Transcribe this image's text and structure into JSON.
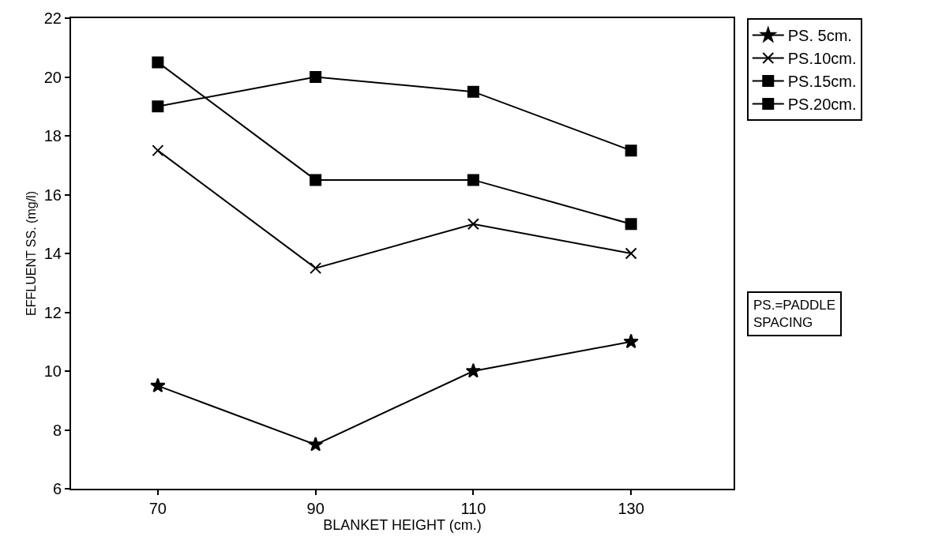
{
  "chart_data": {
    "type": "line",
    "xlabel": "BLANKET HEIGHT (cm.)",
    "ylabel": "EFFLUENT SS. (mg/l)",
    "x": [
      70,
      90,
      110,
      130
    ],
    "series": [
      {
        "name": "PS. 5cm.",
        "color": "#000000",
        "marker": "star",
        "values": [
          9.5,
          7.5,
          10,
          11
        ]
      },
      {
        "name": "PS.10cm.",
        "color": "#000000",
        "marker": "cross",
        "values": [
          17.5,
          13.5,
          15,
          14
        ]
      },
      {
        "name": "PS.15cm.",
        "color": "#000000",
        "marker": "square",
        "values": [
          20.5,
          16.5,
          16.5,
          15
        ]
      },
      {
        "name": "PS.20cm.",
        "color": "#000000",
        "marker": "square",
        "values": [
          19,
          20,
          19.5,
          17.5
        ]
      }
    ],
    "xlim": [
      59,
      143
    ],
    "xticks": [
      70,
      90,
      110,
      130
    ],
    "ylim": [
      6,
      22
    ],
    "yticks": [
      6,
      8,
      10,
      12,
      14,
      16,
      18,
      20,
      22
    ],
    "legend": "right",
    "line_style": "solid",
    "annotations": [
      "PS.=PADDLE\nSPACING"
    ]
  }
}
